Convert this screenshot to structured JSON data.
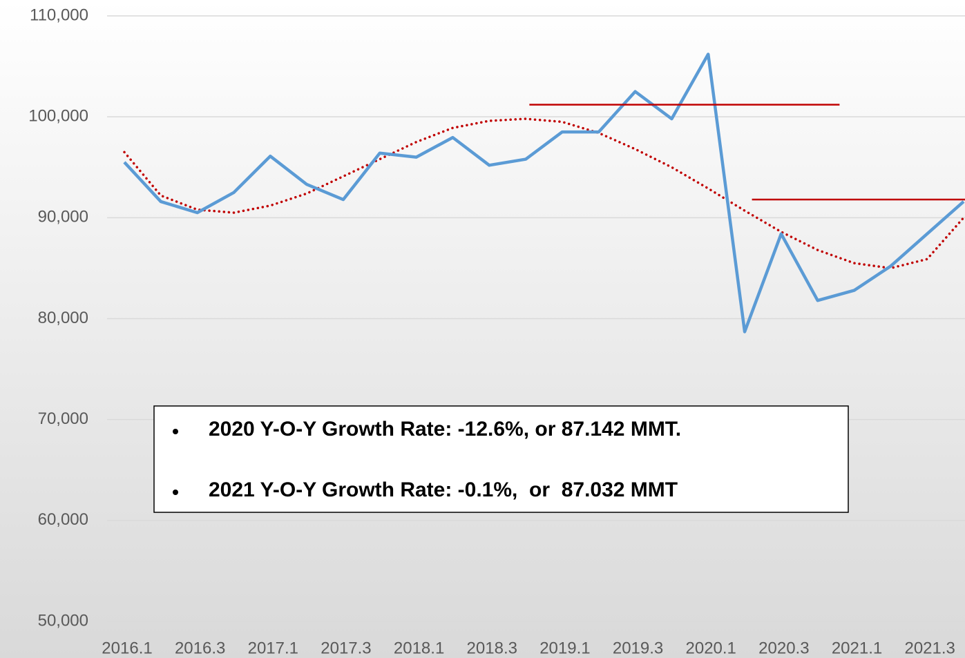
{
  "chart_data": {
    "type": "line",
    "categories": [
      "2016.1",
      null,
      "2016.3",
      null,
      "2017.1",
      null,
      "2017.3",
      null,
      "2018.1",
      null,
      "2018.3",
      null,
      "2019.1",
      null,
      "2019.3",
      null,
      "2020.1",
      null,
      "2020.3",
      null,
      "2021.1",
      null,
      "2021.3",
      null
    ],
    "series": [
      {
        "color": "#5b9bd5",
        "style": "solid",
        "values": [
          95500,
          91600,
          90500,
          92500,
          96100,
          93300,
          91800,
          96400,
          96000,
          97950,
          95200,
          95800,
          98500,
          98500,
          102500,
          99800,
          106200,
          78700,
          88400,
          81800,
          82800,
          85200,
          88400,
          91600
        ]
      },
      {
        "color": "#c00000",
        "style": "dotted",
        "values": [
          96500,
          92200,
          90800,
          90500,
          91200,
          92400,
          94100,
          95800,
          97500,
          98900,
          99600,
          99800,
          99500,
          98400,
          96800,
          95000,
          92900,
          90700,
          88600,
          86800,
          85500,
          85000,
          85900,
          90000
        ]
      }
    ],
    "reference_lines": [
      {
        "value": 101200,
        "x_start": 11.1,
        "x_end": 19.6,
        "color": "#c00000"
      },
      {
        "value": 91800,
        "x_start": 17.2,
        "x_end": 23.1,
        "color": "#c00000"
      }
    ],
    "annotations": [
      "2020 Y-O-Y Growth Rate: -12.6%, or 87.142 MMT.",
      "2021 Y-O-Y Growth Rate: -0.1%,  or  87.032 MMT"
    ],
    "ylim": [
      50000,
      110000
    ],
    "yticks": [
      {
        "value": 50000,
        "label": "50,000"
      },
      {
        "value": 60000,
        "label": "60,000"
      },
      {
        "value": 70000,
        "label": "70,000"
      },
      {
        "value": 80000,
        "label": "80,000"
      },
      {
        "value": 90000,
        "label": "90,000"
      },
      {
        "value": 100000,
        "label": "100,000"
      },
      {
        "value": 110000,
        "label": "110,000"
      }
    ],
    "grid": true
  }
}
